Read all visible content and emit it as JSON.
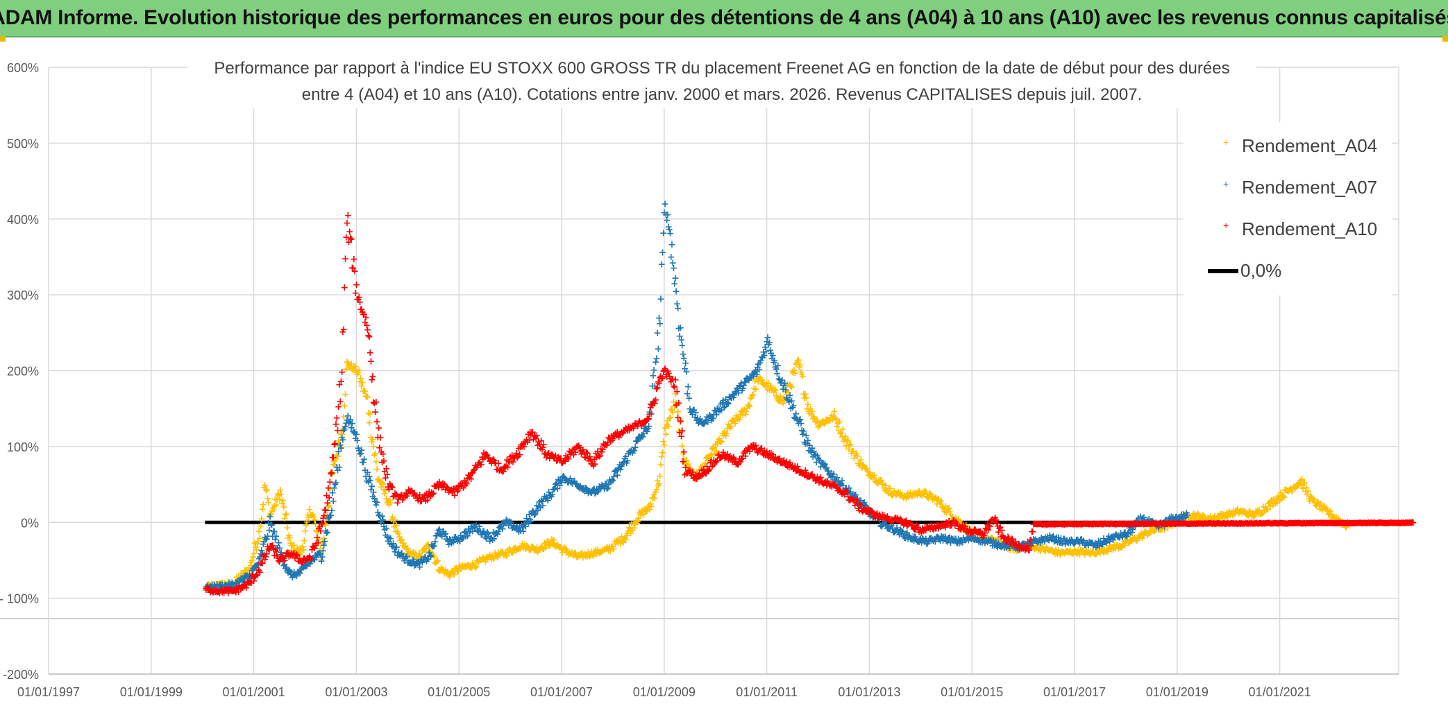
{
  "banner": {
    "title": "ADAM Informe. Evolution historique des performances en euros pour des détentions de 4 ans (A04) à 10 ans (A10) avec les revenus connus capitalisés"
  },
  "chart_data": {
    "type": "scatter",
    "title_line1": "Performance par rapport à l'indice EU STOXX 600 GROSS TR  du placement Freenet AG en fonction de la date de début pour des durées",
    "title_line2": "entre 4 (A04) et 10 ans (A10). Cotations entre janv. 2000 et mars. 2026. Revenus CAPITALISES depuis juil. 2007.",
    "xlabel": "",
    "ylabel": "",
    "x_range": [
      1997.0,
      2023.6
    ],
    "ylim": [
      -200,
      600
    ],
    "y_ticks": [
      600,
      500,
      400,
      300,
      200,
      100,
      0,
      -100,
      -200
    ],
    "y_tick_labels": [
      "600%",
      "500%",
      "400%",
      "300%",
      "200%",
      "100%",
      "0%",
      "- 100%",
      "-200%"
    ],
    "x_ticks": [
      1997,
      1999,
      2001,
      2003,
      2005,
      2007,
      2009,
      2011,
      2013,
      2015,
      2017,
      2019,
      2021
    ],
    "x_tick_labels": [
      "01/01/1997",
      "01/01/1999",
      "01/01/2001",
      "01/01/2003",
      "01/01/2005",
      "01/01/2007",
      "01/01/2009",
      "01/01/2011",
      "01/01/2013",
      "01/01/2015",
      "01/01/2017",
      "01/01/2019",
      "01/01/2021"
    ],
    "grid": true,
    "legend_position": "top-right",
    "zero_line": {
      "name": "0,0%",
      "x_start": 2000.05,
      "x_end": 2023.6,
      "value": 0,
      "color": "#000000"
    },
    "series": [
      {
        "name": "Rendement_A04",
        "color": "#ffc000",
        "x_end": 2022.3,
        "points": [
          [
            2000.05,
            -85
          ],
          [
            2000.3,
            -82
          ],
          [
            2000.6,
            -80
          ],
          [
            2000.9,
            -60
          ],
          [
            2001.1,
            -10
          ],
          [
            2001.2,
            50
          ],
          [
            2001.3,
            10
          ],
          [
            2001.5,
            40
          ],
          [
            2001.7,
            -30
          ],
          [
            2001.9,
            -40
          ],
          [
            2002.1,
            20
          ],
          [
            2002.3,
            -40
          ],
          [
            2002.5,
            60
          ],
          [
            2002.7,
            120
          ],
          [
            2002.8,
            210
          ],
          [
            2003.0,
            200
          ],
          [
            2003.2,
            160
          ],
          [
            2003.4,
            60
          ],
          [
            2003.6,
            30
          ],
          [
            2003.8,
            -20
          ],
          [
            2004.0,
            -40
          ],
          [
            2004.2,
            -45
          ],
          [
            2004.4,
            -30
          ],
          [
            2004.6,
            -60
          ],
          [
            2004.8,
            -68
          ],
          [
            2005.0,
            -60
          ],
          [
            2005.3,
            -55
          ],
          [
            2005.6,
            -45
          ],
          [
            2005.9,
            -40
          ],
          [
            2006.2,
            -30
          ],
          [
            2006.5,
            -35
          ],
          [
            2006.8,
            -25
          ],
          [
            2007.0,
            -35
          ],
          [
            2007.3,
            -45
          ],
          [
            2007.6,
            -40
          ],
          [
            2007.9,
            -35
          ],
          [
            2008.2,
            -20
          ],
          [
            2008.5,
            10
          ],
          [
            2008.7,
            20
          ],
          [
            2008.9,
            60
          ],
          [
            2009.0,
            120
          ],
          [
            2009.2,
            160
          ],
          [
            2009.4,
            80
          ],
          [
            2009.6,
            60
          ],
          [
            2009.8,
            80
          ],
          [
            2010.0,
            100
          ],
          [
            2010.3,
            130
          ],
          [
            2010.6,
            150
          ],
          [
            2010.8,
            190
          ],
          [
            2011.0,
            180
          ],
          [
            2011.3,
            160
          ],
          [
            2011.6,
            210
          ],
          [
            2011.8,
            150
          ],
          [
            2012.0,
            130
          ],
          [
            2012.3,
            140
          ],
          [
            2012.6,
            100
          ],
          [
            2012.9,
            70
          ],
          [
            2013.1,
            60
          ],
          [
            2013.4,
            40
          ],
          [
            2013.7,
            35
          ],
          [
            2014.0,
            40
          ],
          [
            2014.3,
            30
          ],
          [
            2014.6,
            10
          ],
          [
            2014.9,
            -10
          ],
          [
            2015.2,
            -20
          ],
          [
            2015.5,
            -25
          ],
          [
            2015.8,
            -35
          ],
          [
            2016.1,
            -30
          ],
          [
            2016.4,
            -35
          ],
          [
            2016.7,
            -40
          ],
          [
            2017.0,
            -38
          ],
          [
            2017.3,
            -40
          ],
          [
            2017.6,
            -35
          ],
          [
            2017.9,
            -30
          ],
          [
            2018.2,
            -20
          ],
          [
            2018.5,
            -10
          ],
          [
            2018.8,
            -5
          ],
          [
            2019.0,
            5
          ],
          [
            2019.3,
            10
          ],
          [
            2019.6,
            5
          ],
          [
            2019.9,
            10
          ],
          [
            2020.2,
            15
          ],
          [
            2020.5,
            10
          ],
          [
            2020.8,
            25
          ],
          [
            2021.1,
            40
          ],
          [
            2021.4,
            55
          ],
          [
            2021.6,
            30
          ],
          [
            2021.8,
            20
          ],
          [
            2022.0,
            10
          ],
          [
            2022.2,
            0
          ],
          [
            2022.3,
            -5
          ]
        ]
      },
      {
        "name": "Rendement_A07",
        "color": "#1f77b4",
        "x_end": 2019.2,
        "points": [
          [
            2000.05,
            -85
          ],
          [
            2000.3,
            -84
          ],
          [
            2000.6,
            -82
          ],
          [
            2000.9,
            -70
          ],
          [
            2001.1,
            -50
          ],
          [
            2001.3,
            0
          ],
          [
            2001.5,
            -40
          ],
          [
            2001.7,
            -70
          ],
          [
            2001.9,
            -65
          ],
          [
            2002.1,
            -50
          ],
          [
            2002.3,
            -40
          ],
          [
            2002.5,
            20
          ],
          [
            2002.7,
            110
          ],
          [
            2002.8,
            140
          ],
          [
            2003.0,
            110
          ],
          [
            2003.2,
            60
          ],
          [
            2003.4,
            20
          ],
          [
            2003.6,
            -20
          ],
          [
            2003.8,
            -40
          ],
          [
            2004.0,
            -50
          ],
          [
            2004.2,
            -55
          ],
          [
            2004.4,
            -45
          ],
          [
            2004.6,
            -10
          ],
          [
            2004.8,
            -25
          ],
          [
            2005.0,
            -20
          ],
          [
            2005.3,
            -5
          ],
          [
            2005.6,
            -20
          ],
          [
            2005.9,
            0
          ],
          [
            2006.2,
            -10
          ],
          [
            2006.5,
            20
          ],
          [
            2006.8,
            40
          ],
          [
            2007.0,
            60
          ],
          [
            2007.3,
            50
          ],
          [
            2007.6,
            40
          ],
          [
            2007.9,
            50
          ],
          [
            2008.2,
            80
          ],
          [
            2008.5,
            110
          ],
          [
            2008.7,
            130
          ],
          [
            2008.9,
            270
          ],
          [
            2009.0,
            420
          ],
          [
            2009.1,
            380
          ],
          [
            2009.3,
            250
          ],
          [
            2009.5,
            150
          ],
          [
            2009.7,
            130
          ],
          [
            2009.9,
            140
          ],
          [
            2010.2,
            160
          ],
          [
            2010.5,
            180
          ],
          [
            2010.8,
            200
          ],
          [
            2011.0,
            240
          ],
          [
            2011.2,
            200
          ],
          [
            2011.5,
            150
          ],
          [
            2011.8,
            100
          ],
          [
            2012.0,
            80
          ],
          [
            2012.3,
            60
          ],
          [
            2012.6,
            40
          ],
          [
            2012.9,
            20
          ],
          [
            2013.2,
            0
          ],
          [
            2013.5,
            -10
          ],
          [
            2013.8,
            -20
          ],
          [
            2014.1,
            -25
          ],
          [
            2014.4,
            -20
          ],
          [
            2014.7,
            -25
          ],
          [
            2015.0,
            -20
          ],
          [
            2015.3,
            -25
          ],
          [
            2015.6,
            -30
          ],
          [
            2015.9,
            -32
          ],
          [
            2016.2,
            -25
          ],
          [
            2016.5,
            -20
          ],
          [
            2016.8,
            -25
          ],
          [
            2017.1,
            -25
          ],
          [
            2017.4,
            -30
          ],
          [
            2017.7,
            -20
          ],
          [
            2018.0,
            -15
          ],
          [
            2018.3,
            5
          ],
          [
            2018.6,
            -5
          ],
          [
            2018.9,
            5
          ],
          [
            2019.2,
            10
          ]
        ]
      },
      {
        "name": "Rendement_A10",
        "color": "#ff0000",
        "x_end": 2023.6,
        "points": [
          [
            2000.05,
            -88
          ],
          [
            2000.3,
            -90
          ],
          [
            2000.6,
            -90
          ],
          [
            2000.9,
            -80
          ],
          [
            2001.1,
            -60
          ],
          [
            2001.3,
            -30
          ],
          [
            2001.5,
            -50
          ],
          [
            2001.7,
            -40
          ],
          [
            2001.9,
            -50
          ],
          [
            2002.1,
            -45
          ],
          [
            2002.3,
            -5
          ],
          [
            2002.5,
            60
          ],
          [
            2002.7,
            200
          ],
          [
            2002.8,
            400
          ],
          [
            2003.0,
            300
          ],
          [
            2003.2,
            260
          ],
          [
            2003.4,
            120
          ],
          [
            2003.6,
            50
          ],
          [
            2003.8,
            30
          ],
          [
            2004.0,
            40
          ],
          [
            2004.3,
            30
          ],
          [
            2004.6,
            50
          ],
          [
            2004.9,
            40
          ],
          [
            2005.2,
            60
          ],
          [
            2005.5,
            90
          ],
          [
            2005.8,
            70
          ],
          [
            2006.1,
            90
          ],
          [
            2006.4,
            120
          ],
          [
            2006.7,
            90
          ],
          [
            2007.0,
            80
          ],
          [
            2007.3,
            100
          ],
          [
            2007.6,
            80
          ],
          [
            2007.9,
            110
          ],
          [
            2008.2,
            120
          ],
          [
            2008.5,
            130
          ],
          [
            2008.7,
            140
          ],
          [
            2008.9,
            190
          ],
          [
            2009.0,
            200
          ],
          [
            2009.2,
            180
          ],
          [
            2009.4,
            70
          ],
          [
            2009.6,
            60
          ],
          [
            2009.8,
            70
          ],
          [
            2010.1,
            90
          ],
          [
            2010.4,
            80
          ],
          [
            2010.7,
            100
          ],
          [
            2011.0,
            90
          ],
          [
            2011.3,
            80
          ],
          [
            2011.6,
            70
          ],
          [
            2011.9,
            60
          ],
          [
            2012.2,
            50
          ],
          [
            2012.5,
            40
          ],
          [
            2012.8,
            20
          ],
          [
            2013.1,
            10
          ],
          [
            2013.4,
            5
          ],
          [
            2013.7,
            0
          ],
          [
            2014.0,
            -10
          ],
          [
            2014.3,
            -5
          ],
          [
            2014.6,
            0
          ],
          [
            2014.9,
            -10
          ],
          [
            2015.2,
            -15
          ],
          [
            2015.4,
            5
          ],
          [
            2015.6,
            -20
          ],
          [
            2015.9,
            -30
          ],
          [
            2016.1,
            -35
          ],
          [
            2016.2,
            -2
          ],
          [
            2023.6,
            0
          ]
        ]
      }
    ]
  }
}
